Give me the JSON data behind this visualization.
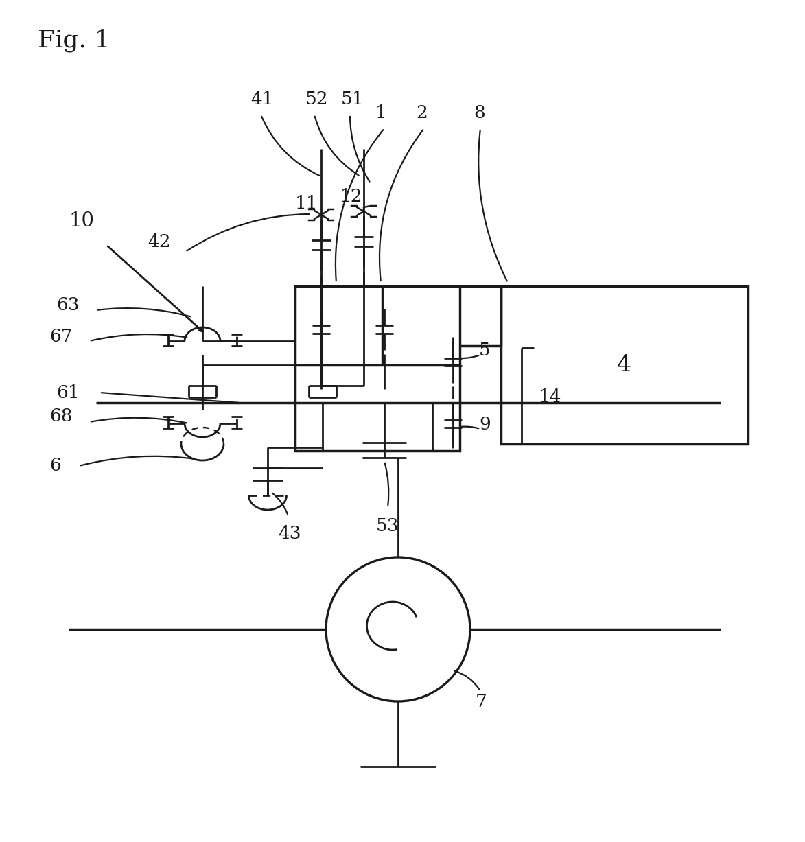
{
  "bg_color": "#ffffff",
  "lc": "#1a1a1a",
  "lw": 2.0,
  "fig_width": 11.73,
  "fig_height": 12.27
}
